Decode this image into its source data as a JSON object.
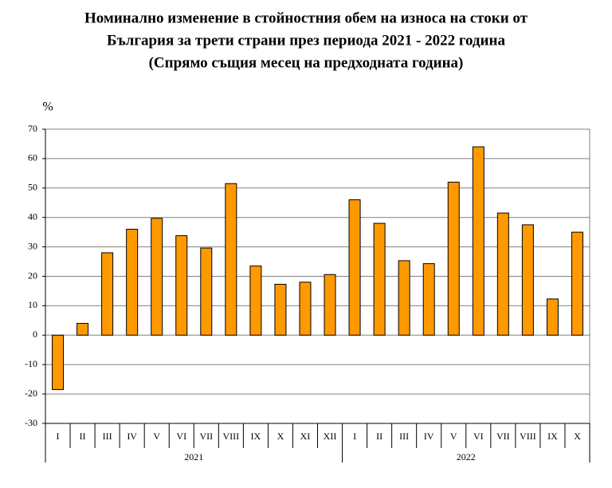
{
  "chart_data": {
    "type": "bar",
    "title": [
      "Номинално изменение в стойностния обем на износа на стоки от",
      "България за трети страни през периода 2021 - 2022 година",
      "(Спрямо същия месец на предходната година)"
    ],
    "y_label": "%",
    "categories": [
      "I",
      "II",
      "III",
      "IV",
      "V",
      "VI",
      "VII",
      "VIII",
      "IX",
      "X",
      "XI",
      "XII",
      "I",
      "II",
      "III",
      "IV",
      "V",
      "VI",
      "VII",
      "VIII",
      "IX",
      "X"
    ],
    "groups": [
      "2021",
      "2022"
    ],
    "values": [
      -18.5,
      4,
      28,
      36,
      39.7,
      33.8,
      29.6,
      51.5,
      23.5,
      17.3,
      18,
      20.6,
      46,
      38,
      25.3,
      24.3,
      52,
      64,
      41.5,
      37.5,
      12.3,
      35
    ],
    "color": "#FF9900",
    "ylim": [
      -30,
      70
    ],
    "yticks": [
      -30,
      -20,
      -10,
      0,
      10,
      20,
      30,
      40,
      50,
      60,
      70
    ],
    "grid": true
  }
}
